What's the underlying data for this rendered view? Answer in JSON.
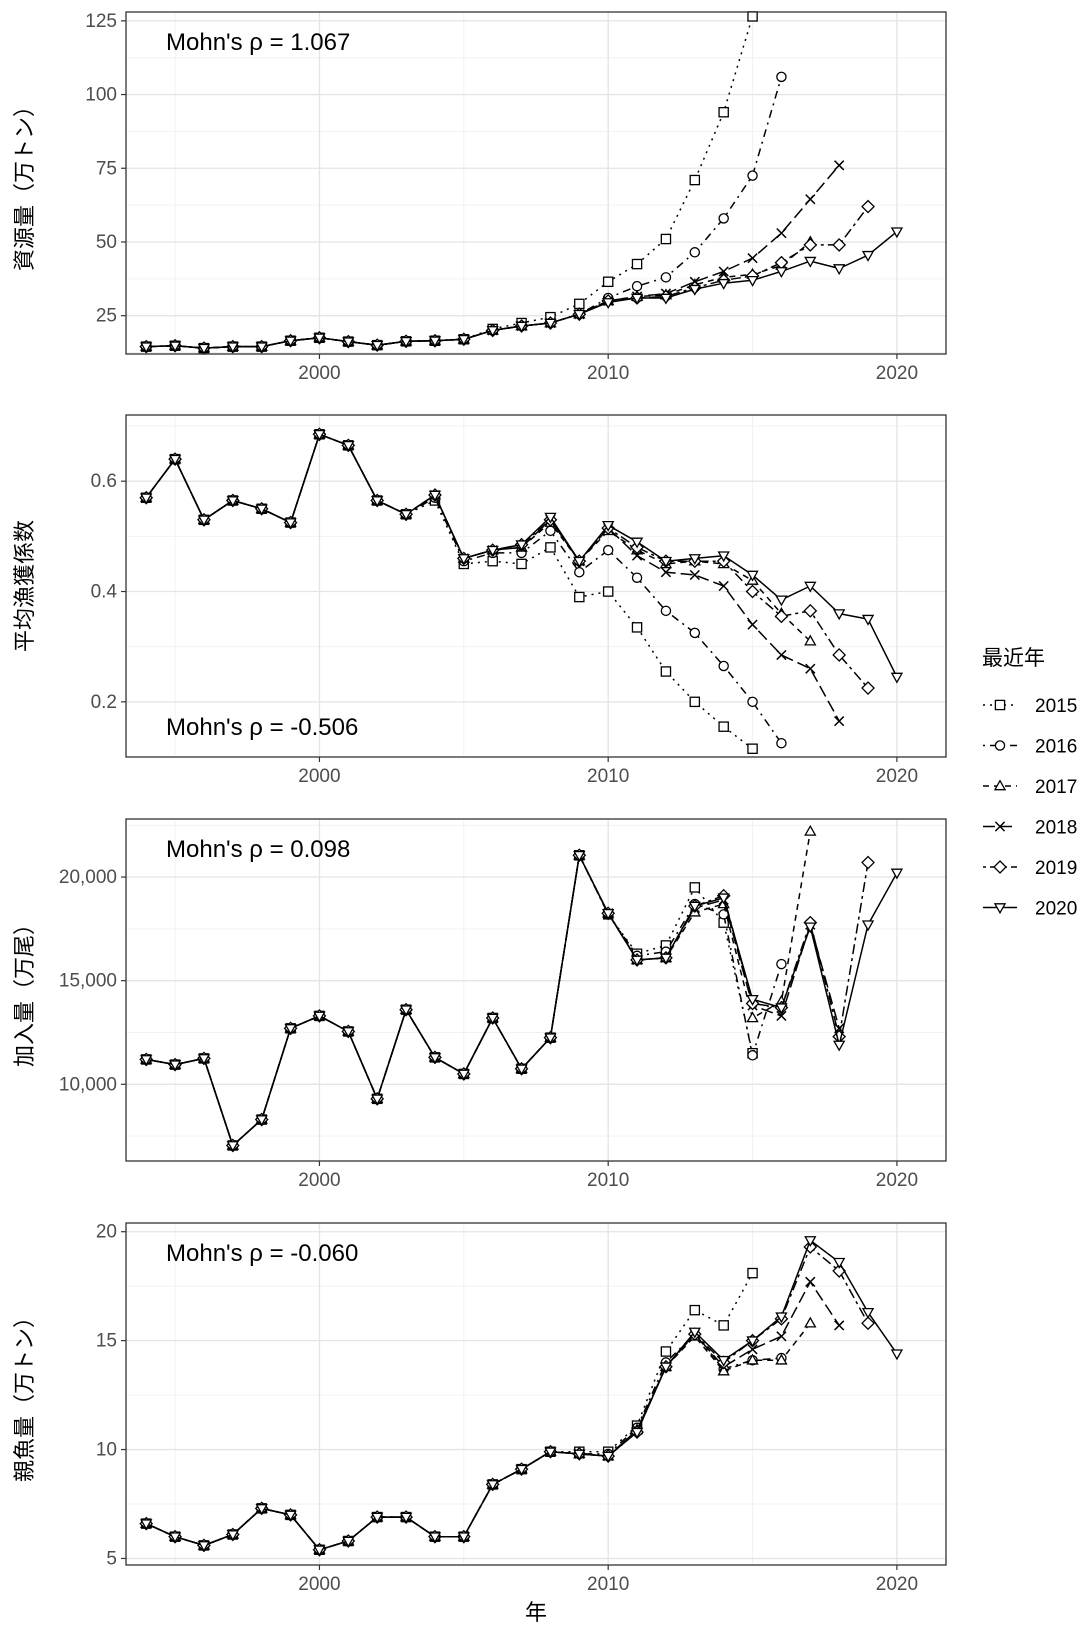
{
  "chart_data": [
    {
      "type": "line",
      "ylabel": "資源量（万トン）",
      "xlabel": "",
      "annotation": "Mohn's ρ = 1.067",
      "annotation_position": "top-left",
      "xlim": [
        1993.3,
        2021.7
      ],
      "ylim": [
        12,
        128
      ],
      "yticks": [
        25,
        50,
        75,
        100,
        125
      ],
      "ytick_labels": [
        "25",
        "50",
        "75",
        "100",
        "125"
      ],
      "xticks": [
        2000,
        2010,
        2020
      ],
      "xtick_labels": [
        "2000",
        "2010",
        "2020"
      ],
      "grid": true,
      "base_years": [
        1994,
        1995,
        1996,
        1997,
        1998,
        1999,
        2000,
        2001,
        2002,
        2003,
        2004,
        2005,
        2006,
        2007,
        2008,
        2009,
        2010
      ],
      "base_values": [
        14.5,
        14.8,
        14.0,
        14.5,
        14.5,
        16.5,
        17.5,
        16.2,
        15.0,
        16.3,
        16.5,
        17.0,
        20.0,
        21.5,
        22.5,
        25.5,
        30.0
      ],
      "series": [
        {
          "name": "2015",
          "start": 2006,
          "values": [
            20.5,
            22.5,
            24.5,
            29.0,
            36.5,
            42.5,
            51.0,
            71.0,
            94.0,
            126.5
          ]
        },
        {
          "name": "2016",
          "start": 2010,
          "values": [
            31.0,
            35.0,
            38.0,
            46.5,
            58.0,
            72.5,
            106.0
          ]
        },
        {
          "name": "2017",
          "start": 2010,
          "values": [
            30.0,
            31.5,
            32.0,
            35.5,
            38.0,
            39.0,
            42.0,
            50.0
          ]
        },
        {
          "name": "2018",
          "start": 2010,
          "values": [
            30.0,
            31.5,
            32.5,
            36.5,
            40.0,
            44.5,
            53.0,
            64.5,
            76.0
          ]
        },
        {
          "name": "2019",
          "start": 2010,
          "values": [
            30.0,
            31.0,
            31.5,
            34.5,
            37.0,
            38.5,
            43.0,
            49.0,
            49.0,
            62.0
          ]
        },
        {
          "name": "2020",
          "start": 2010,
          "values": [
            29.5,
            31.0,
            31.0,
            34.0,
            36.0,
            37.0,
            40.0,
            43.5,
            41.0,
            45.5,
            53.5
          ]
        }
      ]
    },
    {
      "type": "line",
      "ylabel": "平均漁獲係数",
      "xlabel": "",
      "annotation": "Mohn's ρ = -0.506",
      "annotation_position": "bottom-left",
      "xlim": [
        1993.3,
        2021.7
      ],
      "ylim": [
        0.1,
        0.72
      ],
      "yticks": [
        0.2,
        0.4,
        0.6
      ],
      "ytick_labels": [
        "0.2",
        "0.4",
        "0.6"
      ],
      "xticks": [
        2000,
        2010,
        2020
      ],
      "xtick_labels": [
        "2000",
        "2010",
        "2020"
      ],
      "grid": true,
      "base_years": [
        1994,
        1995,
        1996,
        1997,
        1998,
        1999,
        2000,
        2001,
        2002,
        2003,
        2004
      ],
      "base_values": [
        0.57,
        0.64,
        0.53,
        0.565,
        0.55,
        0.525,
        0.685,
        0.665,
        0.565,
        0.54,
        0.57
      ],
      "series": [
        {
          "name": "2015",
          "start": 2004,
          "values": [
            0.565,
            0.45,
            0.455,
            0.45,
            0.48,
            0.39,
            0.4,
            0.335,
            0.255,
            0.2,
            0.155,
            0.115
          ]
        },
        {
          "name": "2016",
          "start": 2004,
          "values": [
            0.57,
            0.455,
            0.47,
            0.47,
            0.51,
            0.435,
            0.475,
            0.425,
            0.365,
            0.325,
            0.265,
            0.2,
            0.125
          ]
        },
        {
          "name": "2017",
          "start": 2004,
          "values": [
            0.575,
            0.46,
            0.475,
            0.48,
            0.525,
            0.455,
            0.51,
            0.475,
            0.45,
            0.455,
            0.45,
            0.42,
            0.36,
            0.31
          ]
        },
        {
          "name": "2018",
          "start": 2004,
          "values": [
            0.575,
            0.46,
            0.475,
            0.48,
            0.53,
            0.455,
            0.515,
            0.465,
            0.435,
            0.43,
            0.41,
            0.34,
            0.285,
            0.26,
            0.165
          ]
        },
        {
          "name": "2019",
          "start": 2004,
          "values": [
            0.575,
            0.46,
            0.475,
            0.485,
            0.53,
            0.455,
            0.515,
            0.48,
            0.455,
            0.455,
            0.455,
            0.4,
            0.355,
            0.365,
            0.285,
            0.225
          ]
        },
        {
          "name": "2020",
          "start": 2004,
          "values": [
            0.575,
            0.46,
            0.475,
            0.485,
            0.535,
            0.455,
            0.52,
            0.49,
            0.455,
            0.46,
            0.465,
            0.43,
            0.385,
            0.41,
            0.36,
            0.35,
            0.245
          ]
        }
      ]
    },
    {
      "type": "line",
      "ylabel": "加入量（万尾）",
      "xlabel": "",
      "annotation": "Mohn's ρ = 0.098",
      "annotation_position": "top-left",
      "xlim": [
        1993.3,
        2021.7
      ],
      "ylim": [
        6300,
        22800
      ],
      "yticks": [
        10000,
        15000,
        20000
      ],
      "ytick_labels": [
        "10,000",
        "15,000",
        "20,000"
      ],
      "xticks": [
        2000,
        2010,
        2020
      ],
      "xtick_labels": [
        "2000",
        "2010",
        "2020"
      ],
      "grid": true,
      "base_years": [
        1994,
        1995,
        1996,
        1997,
        1998,
        1999,
        2000,
        2001,
        2002,
        2003,
        2004,
        2005,
        2006,
        2007,
        2008,
        2009
      ],
      "base_values": [
        11200,
        10950,
        11250,
        7050,
        8300,
        12700,
        13300,
        12550,
        9300,
        13600,
        11300,
        10500,
        13200,
        10750,
        12250,
        21050
      ],
      "series": [
        {
          "name": "2015",
          "start": 2009,
          "values": [
            21050,
            18200,
            16300,
            16700,
            19500,
            17800,
            11500
          ]
        },
        {
          "name": "2016",
          "start": 2009,
          "values": [
            21050,
            18200,
            16200,
            16400,
            18700,
            18200,
            11400,
            15800
          ]
        },
        {
          "name": "2017",
          "start": 2009,
          "values": [
            21050,
            18250,
            16000,
            16100,
            18300,
            18700,
            13200,
            14000,
            22200
          ]
        },
        {
          "name": "2018",
          "start": 2009,
          "values": [
            21050,
            18250,
            16000,
            16100,
            18500,
            18900,
            13800,
            13300,
            17700,
            12700
          ]
        },
        {
          "name": "2019",
          "start": 2009,
          "values": [
            21050,
            18250,
            16000,
            16100,
            18600,
            19100,
            13900,
            13700,
            17800,
            12300,
            20700
          ]
        },
        {
          "name": "2020",
          "start": 2009,
          "values": [
            21050,
            18250,
            16000,
            16100,
            18600,
            19000,
            14100,
            13700,
            17600,
            11900,
            17700,
            20200
          ]
        }
      ]
    },
    {
      "type": "line",
      "ylabel": "親魚量（万トン）",
      "xlabel": "年",
      "annotation": "Mohn's ρ = -0.060",
      "annotation_position": "top-left",
      "xlim": [
        1993.3,
        2021.7
      ],
      "ylim": [
        4.7,
        20.4
      ],
      "yticks": [
        5,
        10,
        15,
        20
      ],
      "ytick_labels": [
        "5",
        "10",
        "15",
        "20"
      ],
      "xticks": [
        2000,
        2010,
        2020
      ],
      "xtick_labels": [
        "2000",
        "2010",
        "2020"
      ],
      "grid": true,
      "base_years": [
        1994,
        1995,
        1996,
        1997,
        1998,
        1999,
        2000,
        2001,
        2002,
        2003,
        2004,
        2005,
        2006,
        2007,
        2008,
        2009
      ],
      "base_values": [
        6.6,
        6.0,
        5.6,
        6.1,
        7.3,
        7.0,
        5.4,
        5.8,
        6.9,
        6.9,
        6.0,
        6.0,
        8.4,
        9.1,
        9.9,
        9.9
      ],
      "series": [
        {
          "name": "2015",
          "start": 2009,
          "values": [
            9.9,
            9.9,
            11.1,
            14.5,
            16.4,
            15.7,
            18.1
          ]
        },
        {
          "name": "2016",
          "start": 2009,
          "values": [
            9.8,
            9.8,
            11.0,
            14.0,
            15.3,
            13.7,
            14.1,
            14.2
          ]
        },
        {
          "name": "2017",
          "start": 2009,
          "values": [
            9.8,
            9.7,
            10.9,
            13.8,
            15.2,
            13.6,
            14.1,
            14.1,
            15.8
          ]
        },
        {
          "name": "2018",
          "start": 2009,
          "values": [
            9.8,
            9.7,
            10.9,
            13.8,
            15.3,
            13.8,
            14.6,
            15.2,
            17.7,
            15.7
          ]
        },
        {
          "name": "2019",
          "start": 2009,
          "values": [
            9.8,
            9.7,
            10.8,
            13.8,
            15.3,
            14.0,
            15.0,
            16.0,
            19.3,
            18.2,
            15.8
          ]
        },
        {
          "name": "2020",
          "start": 2009,
          "values": [
            9.8,
            9.7,
            10.8,
            13.8,
            15.4,
            14.1,
            15.0,
            16.1,
            19.6,
            18.6,
            16.3,
            14.4
          ]
        }
      ]
    }
  ],
  "legend": {
    "title": "最近年",
    "position": "right",
    "entries": [
      {
        "label": "2015",
        "dash": "dotted",
        "marker": "square"
      },
      {
        "label": "2016",
        "dash": "dotdash",
        "marker": "circle"
      },
      {
        "label": "2017",
        "dash": "dashed",
        "marker": "triangle"
      },
      {
        "label": "2018",
        "dash": "longdash",
        "marker": "cross"
      },
      {
        "label": "2019",
        "dash": "twodash",
        "marker": "diamond"
      },
      {
        "label": "2020",
        "dash": "solid",
        "marker": "triangle-down"
      }
    ]
  }
}
